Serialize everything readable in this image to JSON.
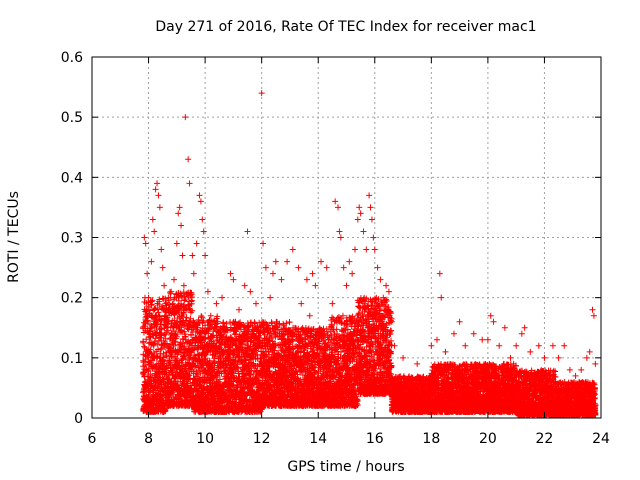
{
  "chart_data": {
    "type": "scatter",
    "title": "Day 271 of 2016, Rate Of TEC Index for receiver mac1",
    "xlabel": "GPS time / hours",
    "ylabel": "ROTI / TECUs",
    "xlim": [
      6,
      24
    ],
    "ylim": [
      0,
      0.6
    ],
    "xticks": [
      6,
      8,
      10,
      12,
      14,
      16,
      18,
      20,
      22,
      24
    ],
    "yticks": [
      0,
      0.1,
      0.2,
      0.3,
      0.4,
      0.5,
      0.6
    ],
    "xtick_labels": [
      "6",
      "8",
      "10",
      "12",
      "14",
      "16",
      "18",
      "20",
      "22",
      "24"
    ],
    "ytick_labels": [
      "0",
      "0.1",
      "0.2",
      "0.3",
      "0.4",
      "0.5",
      "0.6"
    ],
    "grid": true,
    "marker": "+",
    "color": "#ff0000",
    "series": [
      {
        "points": [
          [
            7.85,
            0.3
          ],
          [
            7.9,
            0.29
          ],
          [
            7.95,
            0.24
          ],
          [
            8.0,
            0.2
          ],
          [
            8.05,
            0.18
          ],
          [
            8.1,
            0.26
          ],
          [
            8.15,
            0.33
          ],
          [
            8.2,
            0.31
          ],
          [
            8.25,
            0.38
          ],
          [
            8.3,
            0.39
          ],
          [
            8.35,
            0.37
          ],
          [
            8.4,
            0.35
          ],
          [
            8.45,
            0.28
          ],
          [
            8.5,
            0.25
          ],
          [
            8.55,
            0.22
          ],
          [
            8.6,
            0.19
          ],
          [
            8.7,
            0.2
          ],
          [
            8.8,
            0.21
          ],
          [
            8.9,
            0.23
          ],
          [
            9.0,
            0.29
          ],
          [
            9.05,
            0.34
          ],
          [
            9.1,
            0.35
          ],
          [
            9.15,
            0.32
          ],
          [
            9.2,
            0.27
          ],
          [
            9.25,
            0.22
          ],
          [
            9.3,
            0.5
          ],
          [
            9.4,
            0.43
          ],
          [
            9.45,
            0.39
          ],
          [
            9.55,
            0.27
          ],
          [
            9.6,
            0.24
          ],
          [
            9.7,
            0.29
          ],
          [
            9.8,
            0.37
          ],
          [
            9.85,
            0.36
          ],
          [
            9.9,
            0.33
          ],
          [
            9.95,
            0.31
          ],
          [
            10.0,
            0.27
          ],
          [
            10.1,
            0.21
          ],
          [
            10.2,
            0.17
          ],
          [
            10.4,
            0.19
          ],
          [
            10.6,
            0.2
          ],
          [
            10.7,
            0.15
          ],
          [
            10.9,
            0.24
          ],
          [
            11.0,
            0.23
          ],
          [
            11.2,
            0.18
          ],
          [
            11.4,
            0.22
          ],
          [
            11.5,
            0.31
          ],
          [
            11.6,
            0.21
          ],
          [
            11.8,
            0.19
          ],
          [
            12.0,
            0.54
          ],
          [
            12.05,
            0.29
          ],
          [
            12.15,
            0.25
          ],
          [
            12.3,
            0.2
          ],
          [
            12.4,
            0.24
          ],
          [
            12.5,
            0.26
          ],
          [
            12.7,
            0.23
          ],
          [
            12.9,
            0.26
          ],
          [
            13.1,
            0.28
          ],
          [
            13.3,
            0.25
          ],
          [
            13.4,
            0.19
          ],
          [
            13.6,
            0.23
          ],
          [
            13.7,
            0.17
          ],
          [
            13.8,
            0.24
          ],
          [
            13.9,
            0.22
          ],
          [
            14.1,
            0.26
          ],
          [
            14.3,
            0.25
          ],
          [
            14.5,
            0.19
          ],
          [
            14.6,
            0.36
          ],
          [
            14.7,
            0.35
          ],
          [
            14.75,
            0.31
          ],
          [
            14.8,
            0.3
          ],
          [
            14.9,
            0.25
          ],
          [
            15.0,
            0.22
          ],
          [
            15.1,
            0.26
          ],
          [
            15.2,
            0.24
          ],
          [
            15.3,
            0.28
          ],
          [
            15.4,
            0.33
          ],
          [
            15.45,
            0.35
          ],
          [
            15.5,
            0.34
          ],
          [
            15.6,
            0.31
          ],
          [
            15.7,
            0.28
          ],
          [
            15.8,
            0.37
          ],
          [
            15.85,
            0.35
          ],
          [
            15.9,
            0.33
          ],
          [
            15.95,
            0.3
          ],
          [
            16.0,
            0.28
          ],
          [
            16.1,
            0.25
          ],
          [
            16.2,
            0.23
          ],
          [
            16.3,
            0.2
          ],
          [
            16.4,
            0.22
          ],
          [
            16.5,
            0.21
          ],
          [
            16.6,
            0.16
          ],
          [
            16.7,
            0.12
          ],
          [
            17.0,
            0.1
          ],
          [
            17.5,
            0.09
          ],
          [
            18.0,
            0.12
          ],
          [
            18.2,
            0.13
          ],
          [
            18.3,
            0.24
          ],
          [
            18.35,
            0.2
          ],
          [
            18.5,
            0.11
          ],
          [
            18.8,
            0.14
          ],
          [
            19.0,
            0.16
          ],
          [
            19.2,
            0.12
          ],
          [
            19.5,
            0.14
          ],
          [
            19.8,
            0.13
          ],
          [
            20.0,
            0.13
          ],
          [
            20.1,
            0.17
          ],
          [
            20.2,
            0.16
          ],
          [
            20.4,
            0.12
          ],
          [
            20.6,
            0.15
          ],
          [
            20.8,
            0.1
          ],
          [
            21.0,
            0.12
          ],
          [
            21.2,
            0.14
          ],
          [
            21.3,
            0.15
          ],
          [
            21.5,
            0.11
          ],
          [
            21.8,
            0.12
          ],
          [
            22.0,
            0.1
          ],
          [
            22.3,
            0.12
          ],
          [
            22.5,
            0.1
          ],
          [
            22.7,
            0.12
          ],
          [
            22.9,
            0.08
          ],
          [
            23.1,
            0.07
          ],
          [
            23.3,
            0.08
          ],
          [
            23.5,
            0.1
          ],
          [
            23.6,
            0.11
          ],
          [
            23.7,
            0.18
          ],
          [
            23.75,
            0.17
          ],
          [
            23.8,
            0.09
          ]
        ]
      }
    ],
    "bands": [
      {
        "x_start": 7.8,
        "x_end": 8.6,
        "y_min": 0.01,
        "y_max": 0.2
      },
      {
        "x_start": 8.6,
        "x_end": 9.6,
        "y_min": 0.02,
        "y_max": 0.21
      },
      {
        "x_start": 9.6,
        "x_end": 10.6,
        "y_min": 0.01,
        "y_max": 0.17
      },
      {
        "x_start": 10.6,
        "x_end": 12.0,
        "y_min": 0.01,
        "y_max": 0.16
      },
      {
        "x_start": 12.0,
        "x_end": 13.0,
        "y_min": 0.02,
        "y_max": 0.16
      },
      {
        "x_start": 13.0,
        "x_end": 14.4,
        "y_min": 0.02,
        "y_max": 0.15
      },
      {
        "x_start": 14.4,
        "x_end": 15.4,
        "y_min": 0.02,
        "y_max": 0.17
      },
      {
        "x_start": 15.4,
        "x_end": 16.6,
        "y_min": 0.04,
        "y_max": 0.2
      },
      {
        "x_start": 16.6,
        "x_end": 18.0,
        "y_min": 0.01,
        "y_max": 0.07
      },
      {
        "x_start": 18.0,
        "x_end": 19.5,
        "y_min": 0.01,
        "y_max": 0.09
      },
      {
        "x_start": 19.5,
        "x_end": 21.0,
        "y_min": 0.01,
        "y_max": 0.09
      },
      {
        "x_start": 21.0,
        "x_end": 22.4,
        "y_min": 0.005,
        "y_max": 0.08
      },
      {
        "x_start": 22.4,
        "x_end": 23.8,
        "y_min": 0.005,
        "y_max": 0.06
      }
    ]
  }
}
